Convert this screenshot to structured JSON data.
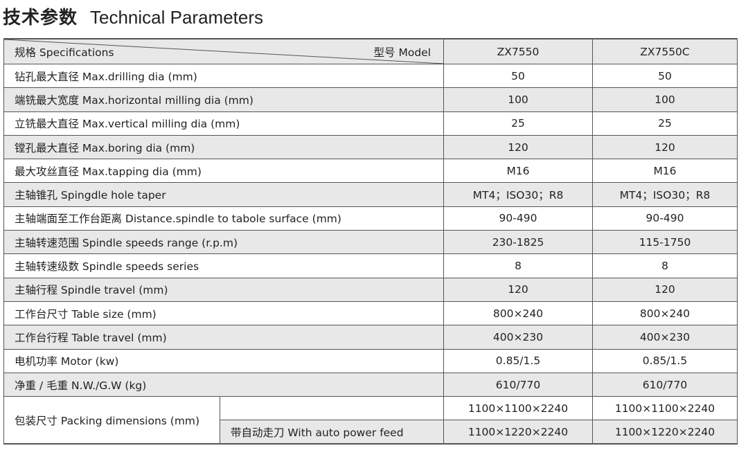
{
  "title": {
    "cn": "技术参数",
    "en": "Technical Parameters"
  },
  "header": {
    "spec": "规格 Specifications",
    "model": "型号  Model",
    "models": [
      "ZX7550",
      "ZX7550C"
    ]
  },
  "rows": [
    {
      "label": "钻孔最大直径  Max.drilling dia (mm)",
      "values": [
        "50",
        "50"
      ]
    },
    {
      "label": "端铣最大宽度  Max.horizontal milling dia (mm)",
      "values": [
        "100",
        "100"
      ]
    },
    {
      "label": "立铣最大直径  Max.vertical milling dia (mm)",
      "values": [
        "25",
        "25"
      ]
    },
    {
      "label": "镗孔最大直径  Max.boring dia (mm)",
      "values": [
        "120",
        "120"
      ]
    },
    {
      "label": "最大攻丝直径  Max.tapping dia (mm)",
      "values": [
        "M16",
        "M16"
      ]
    },
    {
      "label": "主轴锥孔 Spingdle hole taper",
      "values": [
        "MT4；ISO30；R8",
        "MT4；ISO30；R8"
      ]
    },
    {
      "label": "主轴端面至工作台距离  Distance.spindle to tabole surface (mm)",
      "values": [
        "90-490",
        "90-490"
      ]
    },
    {
      "label": "主轴转速范围  Spindle speeds range (r.p.m)",
      "values": [
        "230-1825",
        "115-1750"
      ]
    },
    {
      "label": "主轴转速级数  Spindle speeds series",
      "values": [
        "8",
        "8"
      ]
    },
    {
      "label": "主轴行程  Spindle travel (mm)",
      "values": [
        "120",
        "120"
      ]
    },
    {
      "label": "工作台尺寸  Table size (mm)",
      "values": [
        "800×240",
        "800×240"
      ]
    },
    {
      "label": "工作台行程  Table travel (mm)",
      "values": [
        "400×230",
        "400×230"
      ]
    },
    {
      "label": "电机功率  Motor (kw)",
      "values": [
        "0.85/1.5",
        "0.85/1.5"
      ]
    },
    {
      "label": "净重 / 毛重  N.W./G.W (kg)",
      "values": [
        "610/770",
        "610/770"
      ]
    }
  ],
  "packing": {
    "label": "包装尺寸  Packing dimensions (mm)",
    "sub": [
      {
        "label": "",
        "values": [
          "1100×1100×2240",
          "1100×1100×2240"
        ]
      },
      {
        "label": "带自动走刀  With auto power feed",
        "values": [
          "1100×1220×2240",
          "1100×1220×2240"
        ]
      }
    ]
  }
}
